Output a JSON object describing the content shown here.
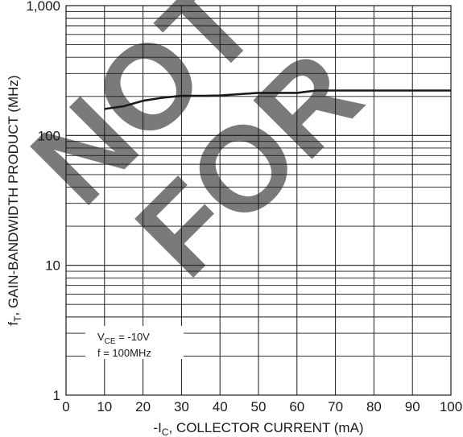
{
  "chart_data": {
    "type": "line",
    "x_label": {
      "prefix": "-I",
      "sub": "C",
      "rest": ", COLLECTOR CURRENT (mA)"
    },
    "y_label": {
      "prefix": "f",
      "sub": "T",
      "rest": ", GAIN-BANDWIDTH PRODUCT (MHz)"
    },
    "xlim": [
      0,
      100
    ],
    "ylim": [
      1,
      1000
    ],
    "y_scale": "log",
    "grid": true,
    "x_ticks": [
      "0",
      "10",
      "20",
      "30",
      "40",
      "50",
      "60",
      "70",
      "80",
      "90",
      "100"
    ],
    "y_ticks": [
      {
        "value": 1,
        "label": "1"
      },
      {
        "value": 10,
        "label": "10"
      },
      {
        "value": 100,
        "label": "100"
      },
      {
        "value": 1000,
        "label": "1,000"
      }
    ],
    "series": [
      {
        "color": "#1a1a1a",
        "x": [
          10,
          15,
          20,
          25,
          30,
          35,
          40,
          45,
          50,
          55,
          60,
          65,
          70,
          80,
          90,
          100
        ],
        "y": [
          160,
          168,
          185,
          195,
          202,
          202,
          203,
          208,
          213,
          213,
          213,
          222,
          222,
          222,
          222,
          222
        ]
      }
    ],
    "annotations": [
      {
        "prefix": "V",
        "sub": "CE",
        "rest": " = -10V"
      },
      {
        "text": "f = 100MHz"
      }
    ],
    "watermark": {
      "line1": "NOT",
      "line2": "FOR"
    }
  }
}
